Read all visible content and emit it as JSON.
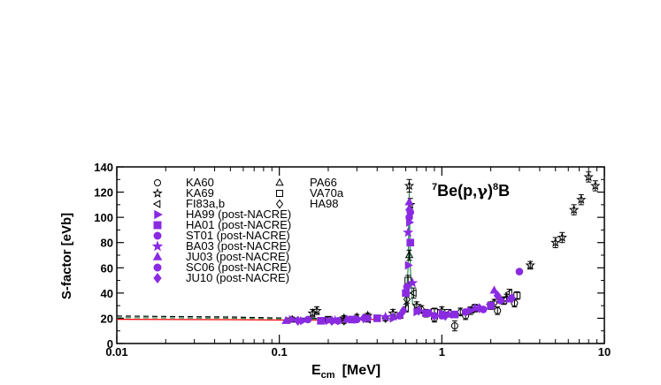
{
  "chart_data": {
    "type": "scatter",
    "title": "7Be(p,γ)8B",
    "title_parts": {
      "pre_sup": "7",
      "main1": "Be(p,",
      "gamma": "γ",
      "main2": ")",
      "post_sup": "8",
      "main3": "B"
    },
    "xlabel": "E",
    "xlabel_sub": "cm",
    "xlabel_unit": "[MeV]",
    "ylabel": "S-factor [eVb]",
    "xscale": "log",
    "xlim": [
      0.01,
      10
    ],
    "ylim": [
      0,
      140
    ],
    "x_ticks": [
      {
        "value": 0.01,
        "label": "0.01"
      },
      {
        "value": 0.1,
        "label": "0.1"
      },
      {
        "value": 1,
        "label": "1"
      },
      {
        "value": 10,
        "label": "10"
      }
    ],
    "y_ticks": [
      {
        "value": 0,
        "label": "0"
      },
      {
        "value": 20,
        "label": "20"
      },
      {
        "value": 40,
        "label": "40"
      },
      {
        "value": 60,
        "label": "60"
      },
      {
        "value": 80,
        "label": "80"
      },
      {
        "value": 100,
        "label": "100"
      },
      {
        "value": 120,
        "label": "120"
      },
      {
        "value": 140,
        "label": "140"
      }
    ],
    "legend_position": "top-left",
    "legend_open": [
      {
        "label": "KA60",
        "marker": "circle"
      },
      {
        "label": "PA66",
        "marker": "triangle"
      },
      {
        "label": "KA69",
        "marker": "star"
      },
      {
        "label": "VA70a",
        "marker": "square"
      },
      {
        "label": "FI83a,b",
        "marker": "triangle-left"
      },
      {
        "label": "HA98",
        "marker": "diamond"
      }
    ],
    "legend_filled": [
      {
        "label": "HA99 (post-NACRE)",
        "marker": "triangle-right"
      },
      {
        "label": "HA01 (post-NACRE)",
        "marker": "square"
      },
      {
        "label": "ST01 (post-NACRE)",
        "marker": "circle"
      },
      {
        "label": "BA03 (post-NACRE)",
        "marker": "star"
      },
      {
        "label": "JU03 (post-NACRE)",
        "marker": "triangle"
      },
      {
        "label": "SC06 (post-NACRE)",
        "marker": "circle"
      },
      {
        "label": "JU10 (post-NACRE)",
        "marker": "diamond"
      }
    ],
    "filled_color": "#8a2be2",
    "fit_lines": [
      {
        "color": "#ff0000",
        "style": "solid",
        "x": [
          0.01,
          0.05,
          0.1,
          0.2,
          0.3,
          0.4
        ],
        "y": [
          19.2,
          18.9,
          18.6,
          18.6,
          18.8,
          19.2
        ]
      },
      {
        "color": "#000000",
        "style": "dashed",
        "x": [
          0.01,
          0.05,
          0.1,
          0.2,
          0.3,
          0.4
        ],
        "y": [
          21.8,
          21.0,
          20.2,
          19.8,
          19.9,
          20.3
        ]
      },
      {
        "color": "#2e8b57",
        "style": "dashed",
        "x": [
          0.01,
          0.05,
          0.1,
          0.2,
          0.3,
          0.4
        ],
        "y": [
          20.5,
          20.0,
          19.6,
          19.4,
          19.5,
          19.9
        ]
      },
      {
        "color": "#2e8b57",
        "style": "solid",
        "x": [
          0.6,
          0.62,
          0.63,
          0.64,
          0.66,
          0.7
        ],
        "y": [
          30,
          60,
          120,
          60,
          32,
          26
        ]
      }
    ],
    "series_open": [
      {
        "marker": "star",
        "points": [
          [
            0.16,
            24,
            3
          ],
          [
            0.17,
            26,
            3
          ],
          [
            0.25,
            20,
            2
          ],
          [
            0.35,
            22,
            2
          ],
          [
            0.5,
            24,
            3
          ],
          [
            0.63,
            125,
            5
          ],
          [
            0.64,
            110,
            5
          ],
          [
            0.7,
            30,
            3
          ],
          [
            1.0,
            26,
            3
          ],
          [
            2.0,
            30,
            3
          ],
          [
            3.5,
            62,
            3
          ],
          [
            5.0,
            80,
            4
          ],
          [
            5.5,
            84,
            4
          ],
          [
            6.5,
            106,
            4
          ],
          [
            7.2,
            114,
            4
          ],
          [
            8.0,
            132,
            4
          ],
          [
            8.8,
            125,
            4
          ]
        ]
      },
      {
        "marker": "circle",
        "points": [
          [
            0.9,
            20,
            3
          ],
          [
            1.2,
            14,
            4
          ],
          [
            1.4,
            22,
            3
          ],
          [
            2.2,
            26,
            3
          ],
          [
            2.8,
            32,
            3
          ]
        ]
      },
      {
        "marker": "triangle",
        "points": [
          [
            0.12,
            19,
            2
          ],
          [
            0.3,
            21,
            2
          ],
          [
            0.55,
            22,
            2
          ],
          [
            0.63,
            70,
            4
          ],
          [
            0.8,
            24,
            3
          ],
          [
            1.5,
            26,
            3
          ],
          [
            2.5,
            36,
            3
          ]
        ]
      },
      {
        "marker": "square",
        "points": [
          [
            0.2,
            19,
            2
          ],
          [
            0.4,
            20,
            2
          ],
          [
            0.62,
            50,
            4
          ],
          [
            0.9,
            25,
            3
          ],
          [
            1.6,
            28,
            3
          ],
          [
            2.4,
            34,
            3
          ],
          [
            2.9,
            38,
            3
          ]
        ]
      },
      {
        "marker": "triangle-left",
        "points": [
          [
            0.35,
            19,
            2
          ],
          [
            0.6,
            28,
            3
          ],
          [
            0.67,
            40,
            4
          ],
          [
            1.1,
            24,
            3
          ],
          [
            2.6,
            40,
            3
          ]
        ]
      },
      {
        "marker": "diamond",
        "points": [
          [
            0.25,
            18,
            2
          ],
          [
            0.45,
            20,
            2
          ],
          [
            0.61,
            35,
            3
          ],
          [
            0.75,
            27,
            3
          ],
          [
            1.3,
            25,
            3
          ],
          [
            2.1,
            32,
            3
          ]
        ]
      }
    ],
    "series_filled": [
      {
        "marker": "triangle-right",
        "points": [
          [
            0.12,
            19
          ],
          [
            0.14,
            18
          ],
          [
            0.2,
            18
          ],
          [
            0.3,
            19
          ],
          [
            0.5,
            20
          ],
          [
            0.62,
            62
          ],
          [
            0.63,
            96
          ],
          [
            0.7,
            25
          ],
          [
            1.0,
            24
          ],
          [
            1.5,
            26
          ]
        ]
      },
      {
        "marker": "square",
        "points": [
          [
            0.18,
            18
          ],
          [
            0.28,
            19
          ],
          [
            0.4,
            20
          ],
          [
            0.6,
            40
          ],
          [
            0.64,
            80
          ],
          [
            0.8,
            24
          ],
          [
            1.2,
            23
          ],
          [
            2.0,
            30
          ]
        ]
      },
      {
        "marker": "circle",
        "points": [
          [
            0.15,
            19
          ],
          [
            0.23,
            18
          ],
          [
            0.35,
            20
          ],
          [
            0.61,
            45
          ],
          [
            0.63,
            100
          ],
          [
            0.9,
            22
          ],
          [
            1.4,
            25
          ],
          [
            2.3,
            34
          ],
          [
            3.0,
            57
          ]
        ]
      },
      {
        "marker": "star",
        "points": [
          [
            0.22,
            18
          ],
          [
            0.45,
            21
          ],
          [
            0.62,
            88
          ],
          [
            0.66,
            48
          ],
          [
            1.1,
            23
          ]
        ]
      },
      {
        "marker": "triangle",
        "points": [
          [
            0.11,
            18
          ],
          [
            0.26,
            19
          ],
          [
            0.5,
            21
          ],
          [
            0.63,
            112
          ],
          [
            0.85,
            24
          ],
          [
            1.6,
            28
          ],
          [
            2.1,
            42
          ],
          [
            2.6,
            35
          ]
        ]
      },
      {
        "marker": "circle",
        "points": [
          [
            0.3,
            19
          ],
          [
            0.55,
            22
          ],
          [
            0.64,
            104
          ],
          [
            1.0,
            22
          ],
          [
            1.8,
            27
          ]
        ]
      },
      {
        "marker": "diamond",
        "points": [
          [
            0.13,
            18
          ],
          [
            0.21,
            18
          ],
          [
            0.33,
            20
          ],
          [
            0.58,
            26
          ],
          [
            0.63,
            106
          ],
          [
            0.72,
            26
          ],
          [
            1.05,
            22
          ],
          [
            1.7,
            28
          ],
          [
            2.2,
            38
          ],
          [
            2.7,
            36
          ]
        ]
      }
    ]
  }
}
